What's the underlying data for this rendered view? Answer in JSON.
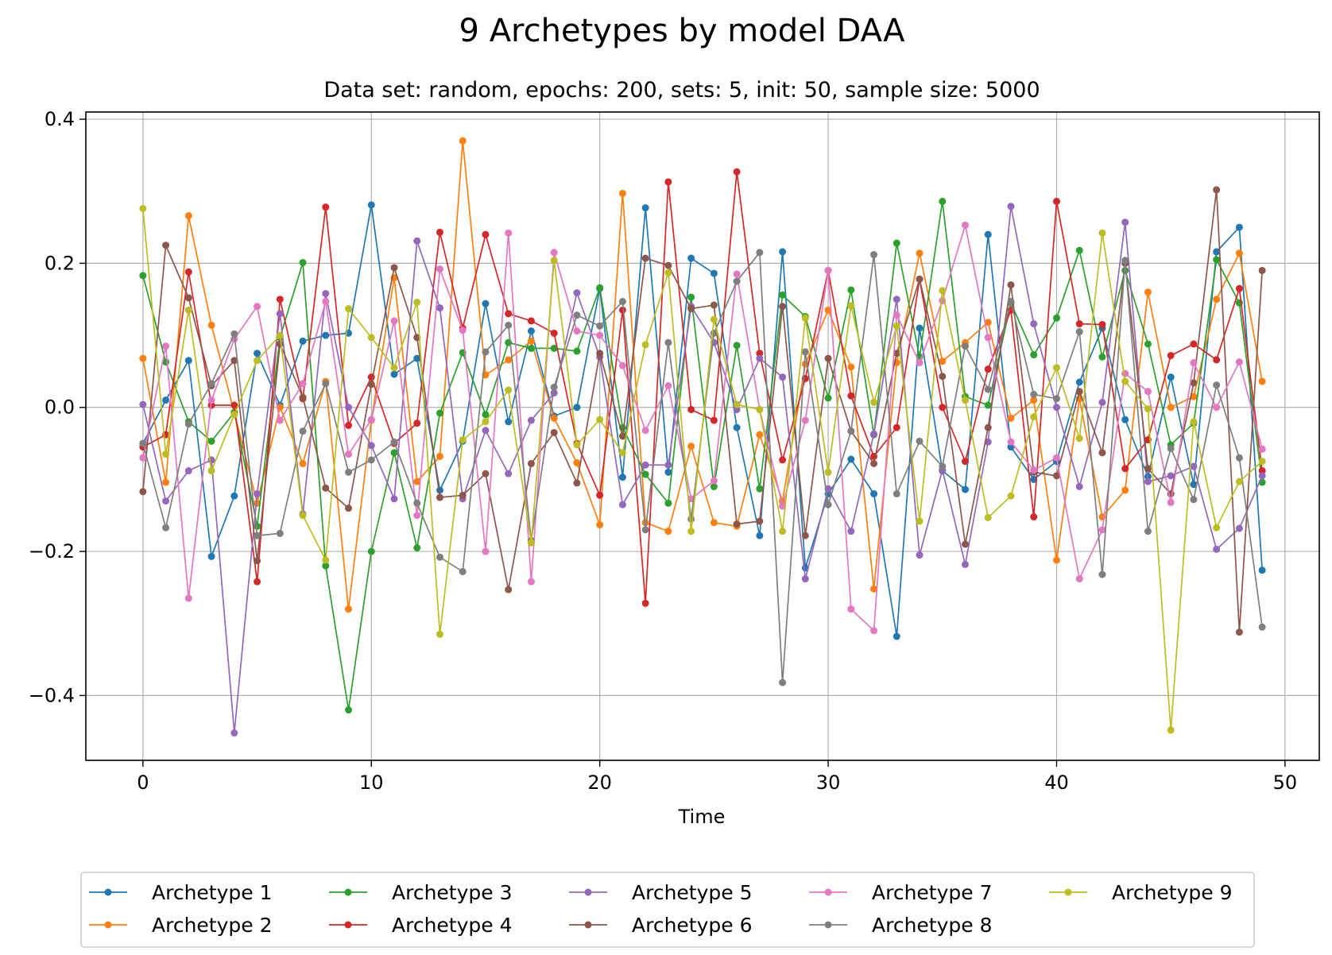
{
  "chart_data": {
    "type": "line",
    "title": "9 Archetypes by model DAA",
    "subtitle": "Data set: random, epochs: 200, sets: 5, init: 50, sample size: 5000",
    "xlabel": "Time",
    "ylabel": "",
    "xlim": [
      -2.5,
      51.5
    ],
    "ylim": [
      -0.49,
      0.41
    ],
    "xticks": [
      0,
      10,
      20,
      30,
      40,
      50
    ],
    "xtick_labels": [
      "0",
      "10",
      "20",
      "30",
      "40",
      "50"
    ],
    "yticks": [
      -0.4,
      -0.2,
      0.0,
      0.2,
      0.4
    ],
    "ytick_labels": [
      "−0.4",
      "−0.2",
      "0.0",
      "0.2",
      "0.4"
    ],
    "grid": true,
    "legend_position": "bottom-center, outside plot, 5 columns",
    "x": [
      0,
      1,
      2,
      3,
      4,
      5,
      6,
      7,
      8,
      9,
      10,
      11,
      12,
      13,
      14,
      15,
      16,
      17,
      18,
      19,
      20,
      21,
      22,
      23,
      24,
      25,
      26,
      27,
      28,
      29,
      30,
      31,
      32,
      33,
      34,
      35,
      36,
      37,
      38,
      39,
      40,
      41,
      42,
      43,
      44,
      45,
      46,
      47,
      48,
      49
    ],
    "series": [
      {
        "name": "Archetype 1",
        "color": "#1f77b4",
        "values": [
          -0.05,
          0.01,
          0.065,
          -0.207,
          -0.123,
          0.075,
          0.003,
          0.092,
          0.1,
          0.103,
          0.281,
          0.046,
          0.068,
          -0.115,
          -0.047,
          0.144,
          -0.02,
          0.106,
          -0.012,
          0.0,
          0.165,
          -0.097,
          0.277,
          -0.09,
          0.207,
          0.186,
          -0.028,
          -0.178,
          0.216,
          -0.223,
          -0.12,
          -0.072,
          -0.12,
          -0.318,
          0.11,
          -0.088,
          -0.114,
          0.24,
          -0.055,
          -0.1,
          -0.075,
          0.035,
          0.11,
          -0.017,
          -0.096,
          0.042,
          -0.107,
          0.216,
          0.25,
          -0.226
        ]
      },
      {
        "name": "Archetype 2",
        "color": "#ff7f0e",
        "values": [
          0.068,
          -0.104,
          0.266,
          0.114,
          -0.007,
          -0.133,
          0.0,
          -0.078,
          0.036,
          -0.28,
          -0.018,
          0.18,
          -0.103,
          -0.068,
          0.37,
          0.045,
          0.066,
          0.092,
          -0.015,
          -0.077,
          -0.163,
          0.297,
          -0.16,
          -0.172,
          -0.054,
          -0.16,
          -0.165,
          -0.038,
          -0.13,
          0.06,
          0.135,
          0.056,
          -0.252,
          0.062,
          0.214,
          0.064,
          0.09,
          0.118,
          -0.015,
          0.01,
          -0.212,
          0.012,
          -0.152,
          -0.115,
          0.16,
          0.0,
          0.015,
          0.15,
          0.214,
          0.036
        ]
      },
      {
        "name": "Archetype 3",
        "color": "#2ca02c",
        "values": [
          0.183,
          0.063,
          -0.02,
          -0.047,
          -0.007,
          -0.165,
          0.097,
          0.201,
          -0.22,
          -0.42,
          -0.2,
          -0.063,
          -0.195,
          -0.008,
          0.076,
          -0.01,
          0.09,
          0.082,
          0.082,
          0.078,
          0.166,
          -0.028,
          -0.093,
          -0.133,
          0.153,
          -0.11,
          0.086,
          -0.113,
          0.156,
          0.126,
          0.013,
          0.163,
          -0.038,
          0.228,
          0.07,
          0.286,
          0.015,
          0.003,
          0.145,
          0.073,
          0.124,
          0.218,
          0.07,
          0.19,
          0.088,
          -0.052,
          -0.022,
          0.205,
          0.145,
          -0.104
        ]
      },
      {
        "name": "Archetype 4",
        "color": "#d62728",
        "values": [
          -0.055,
          -0.038,
          0.188,
          0.003,
          0.003,
          -0.242,
          0.15,
          0.012,
          0.278,
          -0.025,
          0.042,
          -0.05,
          -0.022,
          0.243,
          0.11,
          0.24,
          0.13,
          0.12,
          0.103,
          -0.05,
          -0.122,
          0.135,
          -0.272,
          0.313,
          -0.003,
          -0.018,
          0.327,
          0.075,
          -0.073,
          0.04,
          0.19,
          0.016,
          -0.068,
          -0.028,
          0.178,
          0.0,
          -0.075,
          0.053,
          0.135,
          -0.152,
          0.286,
          0.116,
          0.115,
          -0.085,
          -0.045,
          0.072,
          0.088,
          0.066,
          0.165,
          -0.088
        ]
      },
      {
        "name": "Archetype 5",
        "color": "#9467bd",
        "values": [
          0.004,
          -0.13,
          -0.088,
          -0.073,
          -0.452,
          -0.12,
          0.13,
          -0.148,
          0.158,
          0.0,
          -0.053,
          -0.127,
          0.231,
          0.138,
          -0.127,
          -0.032,
          -0.092,
          -0.018,
          0.02,
          0.159,
          0.07,
          -0.135,
          -0.08,
          -0.08,
          0.14,
          0.09,
          -0.003,
          0.068,
          0.042,
          -0.238,
          -0.113,
          -0.172,
          -0.037,
          0.15,
          -0.205,
          -0.087,
          -0.218,
          -0.048,
          0.279,
          0.116,
          0.0,
          -0.11,
          0.007,
          0.257,
          -0.103,
          -0.095,
          -0.082,
          -0.197,
          -0.168,
          -0.095
        ]
      },
      {
        "name": "Archetype 6",
        "color": "#8c564b",
        "values": [
          -0.117,
          0.225,
          0.152,
          0.03,
          0.065,
          -0.213,
          0.088,
          0.014,
          -0.112,
          -0.14,
          0.032,
          0.194,
          0.097,
          -0.125,
          -0.122,
          -0.092,
          -0.253,
          -0.078,
          -0.035,
          -0.105,
          0.075,
          -0.04,
          0.207,
          0.197,
          0.137,
          0.142,
          -0.162,
          -0.158,
          0.14,
          -0.178,
          0.068,
          -0.033,
          -0.078,
          0.075,
          0.178,
          0.043,
          -0.19,
          -0.028,
          0.17,
          -0.09,
          -0.095,
          0.022,
          -0.063,
          0.2,
          -0.085,
          -0.12,
          0.034,
          0.302,
          -0.312,
          0.19
        ]
      },
      {
        "name": "Archetype 7",
        "color": "#e377c2",
        "values": [
          -0.07,
          0.085,
          -0.265,
          0.01,
          0.095,
          0.14,
          -0.018,
          0.033,
          0.147,
          -0.065,
          -0.017,
          0.12,
          -0.15,
          0.192,
          0.107,
          -0.2,
          0.242,
          -0.242,
          0.215,
          0.106,
          0.1,
          0.058,
          -0.032,
          0.03,
          -0.127,
          -0.102,
          0.185,
          -0.003,
          -0.137,
          -0.018,
          0.19,
          -0.28,
          -0.31,
          0.128,
          0.062,
          0.148,
          0.253,
          0.097,
          -0.048,
          -0.087,
          -0.07,
          -0.238,
          -0.17,
          0.047,
          0.022,
          -0.132,
          0.062,
          0.0,
          0.063,
          -0.058
        ]
      },
      {
        "name": "Archetype 8",
        "color": "#7f7f7f",
        "values": [
          -0.05,
          -0.167,
          -0.023,
          0.033,
          0.102,
          -0.178,
          -0.175,
          -0.033,
          0.033,
          -0.09,
          -0.073,
          -0.048,
          -0.133,
          -0.208,
          -0.228,
          0.077,
          0.114,
          -0.185,
          0.028,
          0.128,
          0.113,
          0.147,
          -0.17,
          0.09,
          -0.155,
          0.103,
          0.175,
          0.215,
          -0.382,
          0.077,
          -0.135,
          -0.033,
          0.212,
          -0.12,
          -0.047,
          -0.082,
          0.085,
          0.025,
          0.147,
          0.018,
          0.012,
          0.105,
          -0.232,
          0.204,
          -0.172,
          -0.057,
          -0.128,
          0.031,
          -0.07,
          -0.305
        ]
      },
      {
        "name": "Archetype 9",
        "color": "#bcbd22",
        "values": [
          0.276,
          -0.065,
          0.135,
          -0.088,
          -0.01,
          0.065,
          0.1,
          -0.15,
          -0.212,
          0.137,
          0.097,
          0.055,
          0.146,
          -0.315,
          -0.045,
          -0.02,
          0.024,
          -0.188,
          0.204,
          -0.052,
          -0.017,
          -0.063,
          0.087,
          0.187,
          -0.172,
          0.122,
          0.004,
          -0.003,
          -0.172,
          0.124,
          -0.09,
          0.141,
          0.007,
          0.113,
          -0.158,
          0.162,
          0.01,
          -0.153,
          -0.123,
          -0.013,
          0.055,
          -0.043,
          0.242,
          0.036,
          -0.002,
          -0.448,
          -0.02,
          -0.167,
          -0.103,
          -0.075
        ]
      }
    ]
  }
}
